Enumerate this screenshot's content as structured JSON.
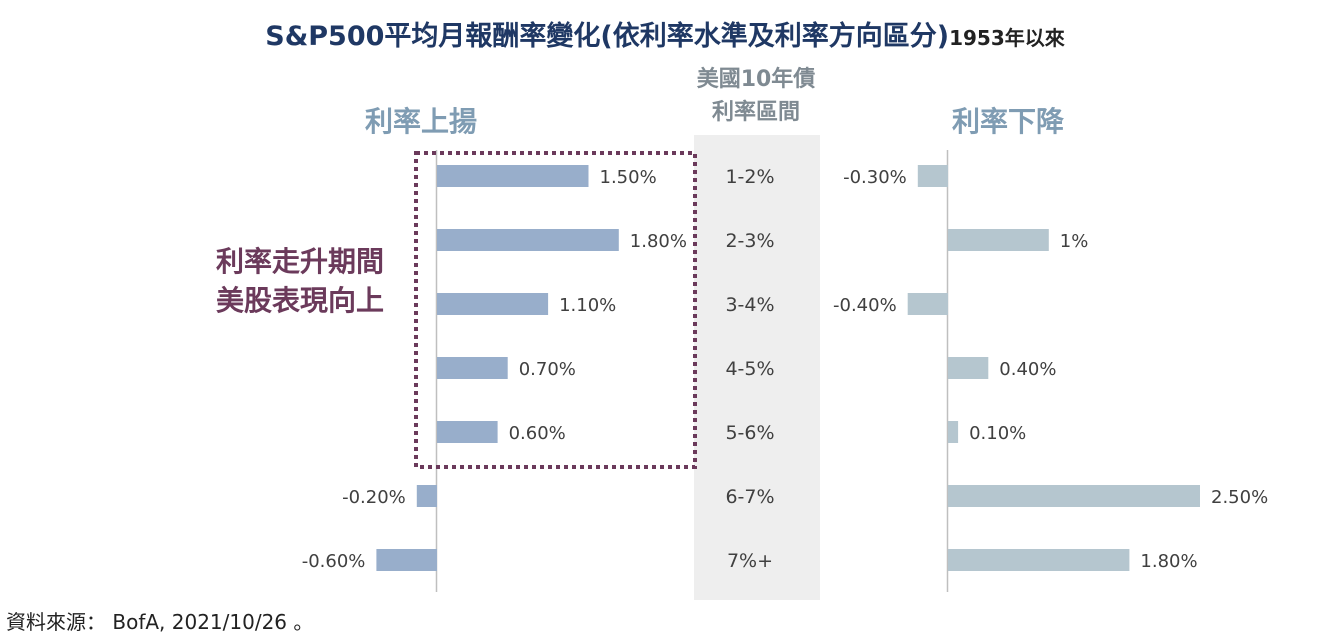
{
  "title": "S&P500平均月報酬率變化(依利率水準及利率方向區分)",
  "title_suffix": "1953年以來",
  "source": "資料來源： BofA, 2021/10/26 。",
  "annotation": [
    "利率走升期間",
    "美股表現向上"
  ],
  "colors": {
    "rising_bar": "#98aecb",
    "falling_bar": "#b5c6cf",
    "title": "#1f3864",
    "panel_heading": "#7f9cb3",
    "annotation": "#6b3a5b",
    "center_band": "#eeeeee",
    "axis": "#bfbfbf",
    "label": "#404040"
  },
  "chart_data": {
    "type": "bar",
    "orientation": "horizontal",
    "center_header": [
      "美國10年債",
      "利率區間"
    ],
    "categories": [
      "1-2%",
      "2-3%",
      "3-4%",
      "4-5%",
      "5-6%",
      "6-7%",
      "7%+"
    ],
    "series": [
      {
        "name": "利率上揚",
        "values": [
          1.5,
          1.8,
          1.1,
          0.7,
          0.6,
          -0.2,
          -0.6
        ],
        "labels": [
          "1.50%",
          "1.80%",
          "1.10%",
          "0.70%",
          "0.60%",
          "-0.20%",
          "-0.60%"
        ]
      },
      {
        "name": "利率下降",
        "values": [
          -0.3,
          1.0,
          -0.4,
          0.4,
          0.1,
          2.5,
          1.8
        ],
        "labels": [
          "-0.30%",
          "1%",
          "-0.40%",
          "0.40%",
          "0.10%",
          "2.50%",
          "1.80%"
        ]
      }
    ],
    "highlight": {
      "series": "利率上揚",
      "categories": [
        "1-2%",
        "2-3%",
        "3-4%",
        "4-5%",
        "5-6%"
      ],
      "style": "dotted-box"
    }
  }
}
